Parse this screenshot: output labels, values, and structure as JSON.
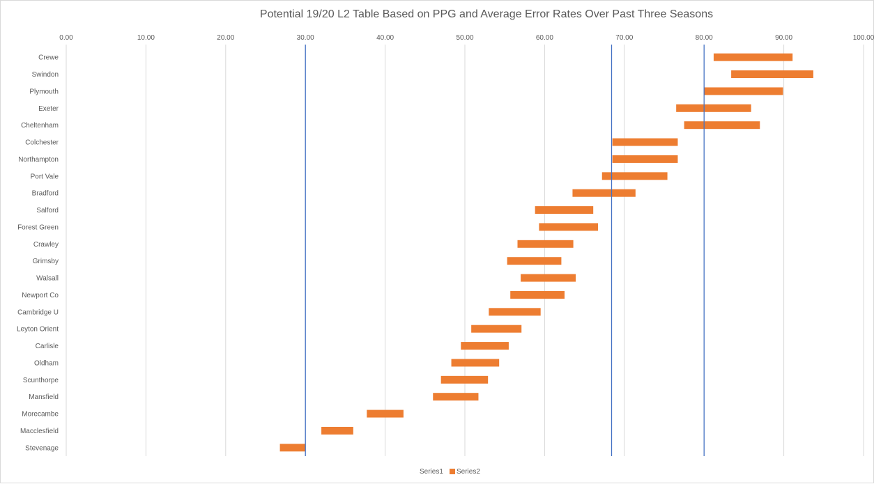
{
  "chart_data": {
    "type": "bar",
    "orientation": "horizontal",
    "stacked": true,
    "title": "Potential 19/20 L2 Table Based on PPG and Average Error Rates Over Past Three Seasons",
    "xlim": [
      0,
      100
    ],
    "x_ticks": [
      "0.00",
      "10.00",
      "20.00",
      "30.00",
      "40.00",
      "50.00",
      "60.00",
      "70.00",
      "80.00",
      "90.00",
      "100.00"
    ],
    "x_axis_position": "top",
    "grid": true,
    "legend_position": "bottom",
    "categories": [
      "Crewe",
      "Swindon",
      "Plymouth",
      "Exeter",
      "Cheltenham",
      "Colchester",
      "Northampton",
      "Port Vale",
      "Bradford",
      "Salford",
      "Forest Green",
      "Crawley",
      "Grimsby",
      "Walsall",
      "Newport Co",
      "Cambridge U",
      "Leyton Orient",
      "Carlisle",
      "Oldham",
      "Scunthorpe",
      "Mansfield",
      "Morecambe",
      "Macclesfield",
      "Stevenage"
    ],
    "series": [
      {
        "name": "Series1",
        "color": "none",
        "values": [
          81.2,
          83.4,
          80.0,
          76.5,
          77.5,
          68.5,
          68.5,
          67.2,
          63.5,
          58.8,
          59.3,
          56.6,
          55.3,
          57.0,
          55.7,
          53.0,
          50.8,
          49.5,
          48.3,
          47.0,
          46.0,
          37.7,
          32.0,
          26.8
        ]
      },
      {
        "name": "Series2",
        "color": "#ed7d31",
        "values": [
          9.9,
          10.3,
          9.9,
          9.4,
          9.5,
          8.2,
          8.2,
          8.2,
          7.9,
          7.3,
          7.4,
          7.0,
          6.8,
          6.9,
          6.8,
          6.5,
          6.3,
          6.0,
          6.0,
          5.9,
          5.7,
          4.6,
          4.0,
          3.2
        ]
      }
    ],
    "reference_lines": [
      {
        "x": 30.0,
        "color": "#4472c4"
      },
      {
        "x": 68.4,
        "color": "#4472c4"
      },
      {
        "x": 80.0,
        "color": "#4472c4"
      }
    ],
    "legend": [
      {
        "label": "Series1",
        "color": "none"
      },
      {
        "label": "Series2",
        "color": "#ed7d31"
      }
    ]
  }
}
